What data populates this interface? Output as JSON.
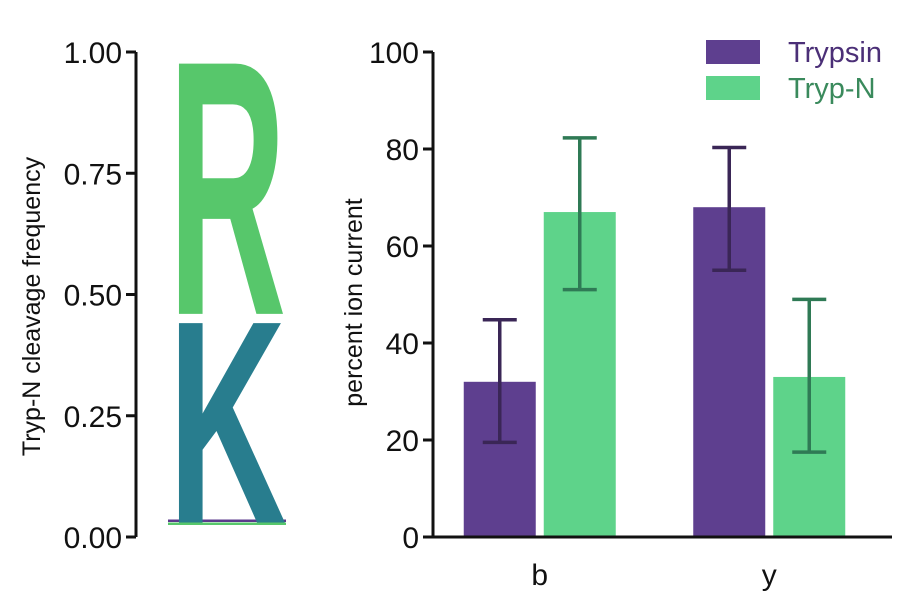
{
  "chart_data": [
    {
      "type": "logo",
      "ylabel": "Tryp-N cleavage frequency",
      "ylim": [
        0,
        1
      ],
      "yticks": [
        "0.00",
        "0.25",
        "0.50",
        "0.75",
        "1.00"
      ],
      "letters": [
        {
          "letter": "R",
          "frequency": 0.54,
          "color": "#57c76b"
        },
        {
          "letter": "K",
          "frequency": 0.43,
          "color": "#287d8e"
        }
      ],
      "residual_colors": [
        "#57c76b",
        "#5b3a8c"
      ]
    },
    {
      "type": "bar",
      "categories": [
        "b",
        "y"
      ],
      "ylabel": "percent ion current",
      "ylim": [
        0,
        100
      ],
      "yticks": [
        "0",
        "20",
        "40",
        "60",
        "80",
        "100"
      ],
      "legend_position": "top-right",
      "series": [
        {
          "name": "Trypsin",
          "color": "#5e3f8f",
          "error_color": "#3a2656",
          "label_color": "#4b2f77",
          "values": [
            32,
            68
          ],
          "err_low": [
            19.5,
            55
          ],
          "err_high": [
            44.8,
            80.3
          ]
        },
        {
          "name": "Tryp-N",
          "color": "#5ed38a",
          "error_color": "#2f7a55",
          "label_color": "#3a8a5c",
          "values": [
            67,
            33
          ],
          "err_low": [
            51,
            17.5
          ],
          "err_high": [
            82.3,
            49
          ]
        }
      ]
    }
  ]
}
